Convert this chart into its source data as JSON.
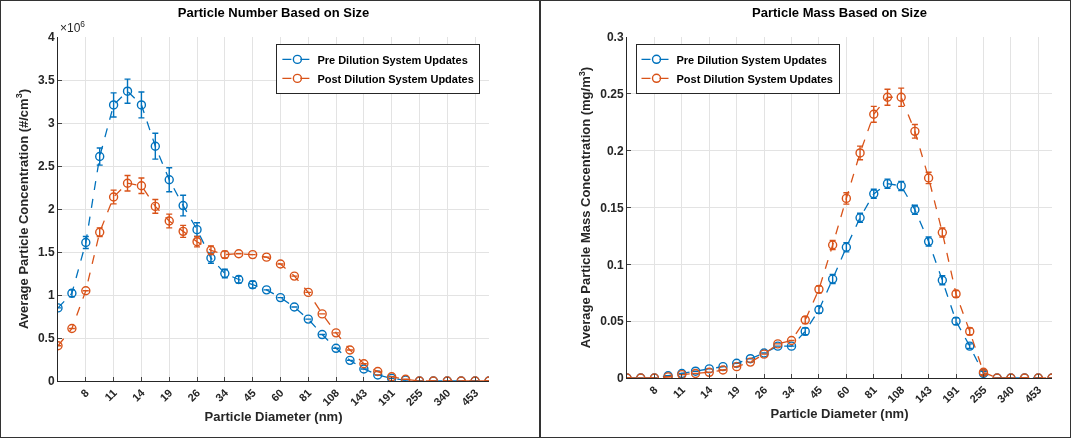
{
  "chart_data": [
    {
      "type": "line",
      "title": "Particle Number Based on Size",
      "xlabel": "Particle Diameter (nm)",
      "ylabel": "Average Particle Concentration (#/cm$^{3}$)",
      "annotations": [
        "×10$^{6}$"
      ],
      "categories": [
        null,
        null,
        "8",
        null,
        "11",
        null,
        "14",
        null,
        "19",
        null,
        "26",
        null,
        "34",
        null,
        "45",
        null,
        "60",
        null,
        "81",
        null,
        "108",
        null,
        "143",
        null,
        "191",
        null,
        "255",
        null,
        "340",
        null,
        "453",
        null
      ],
      "ylim": [
        0,
        4
      ],
      "yticks": [
        0,
        0.5,
        1,
        1.5,
        2,
        2.5,
        3,
        3.5,
        4
      ],
      "grid": true,
      "legend": "top right",
      "marker": "circle",
      "line_style": "dashed",
      "series": [
        {
          "name": "Pre Dilution System Updates",
          "color": "#0072bd",
          "values": [
            0.85,
            1.02,
            1.61,
            2.61,
            3.21,
            3.37,
            3.21,
            2.73,
            2.34,
            2.04,
            1.76,
            1.43,
            1.25,
            1.18,
            1.12,
            1.06,
            0.97,
            0.86,
            0.72,
            0.54,
            0.38,
            0.24,
            0.14,
            0.07,
            0.03,
            0.01,
            0,
            0,
            0,
            0,
            0,
            0
          ],
          "errors": [
            null,
            0.04,
            0.07,
            0.1,
            0.14,
            0.14,
            0.15,
            0.15,
            0.14,
            0.12,
            0.08,
            0.06,
            0.05,
            0.04,
            0.04,
            null,
            null,
            null,
            null,
            null,
            null,
            null,
            null,
            null,
            null,
            null,
            null,
            null,
            null,
            null,
            null,
            null
          ]
        },
        {
          "name": "Post Dilution System Updates",
          "color": "#d95319",
          "values": [
            0.41,
            0.61,
            1.05,
            1.73,
            2.14,
            2.3,
            2.27,
            2.03,
            1.86,
            1.74,
            1.62,
            1.52,
            1.47,
            1.48,
            1.47,
            1.44,
            1.36,
            1.22,
            1.03,
            0.78,
            0.56,
            0.36,
            0.2,
            0.11,
            0.05,
            0.02,
            0,
            0,
            0,
            0,
            0,
            0
          ],
          "errors": [
            null,
            null,
            null,
            0.05,
            0.08,
            0.09,
            0.09,
            0.08,
            0.08,
            0.07,
            0.06,
            0.05,
            0.04,
            null,
            null,
            null,
            null,
            null,
            null,
            null,
            null,
            null,
            null,
            null,
            null,
            null,
            null,
            null,
            null,
            null,
            null,
            null
          ]
        }
      ]
    },
    {
      "type": "line",
      "title": "Particle Mass Based on Size",
      "xlabel": "Particle Diameter (nm)",
      "ylabel": "Average Particle Mass Concentration (mg/m$^{3}$)",
      "categories": [
        null,
        null,
        "8",
        null,
        "11",
        null,
        "14",
        null,
        "19",
        null,
        "26",
        null,
        "34",
        null,
        "45",
        null,
        "60",
        null,
        "81",
        null,
        "108",
        null,
        "143",
        null,
        "191",
        null,
        "255",
        null,
        "340",
        null,
        "453",
        null
      ],
      "ylim": [
        0,
        0.3
      ],
      "yticks": [
        0,
        0.05,
        0.1,
        0.15,
        0.2,
        0.25,
        0.3
      ],
      "grid": true,
      "legend": "top left",
      "marker": "circle",
      "line_style": "dashed",
      "series": [
        {
          "name": "Pre Dilution System Updates",
          "color": "#0072bd",
          "values": [
            0,
            0,
            0,
            0.002,
            0.004,
            0.006,
            0.008,
            0.01,
            0.013,
            0.017,
            0.022,
            0.028,
            0.028,
            0.041,
            0.06,
            0.087,
            0.115,
            0.141,
            0.162,
            0.171,
            0.169,
            0.148,
            0.12,
            0.086,
            0.05,
            0.028,
            0.004,
            0,
            0,
            0,
            0,
            0
          ],
          "errors": [
            null,
            null,
            null,
            null,
            null,
            null,
            null,
            null,
            null,
            null,
            null,
            null,
            null,
            0.003,
            0.003,
            0.004,
            0.004,
            0.004,
            0.004,
            0.004,
            0.004,
            0.004,
            0.004,
            0.004,
            0.003,
            0.002,
            0.002,
            null,
            null,
            null,
            null,
            null
          ]
        },
        {
          "name": "Post Dilution System Updates",
          "color": "#d95319",
          "values": [
            0,
            0,
            0,
            0.001,
            0.003,
            0.004,
            0.005,
            0.007,
            0.01,
            0.014,
            0.021,
            0.03,
            0.033,
            0.051,
            0.078,
            0.117,
            0.158,
            0.198,
            0.232,
            0.247,
            0.247,
            0.217,
            0.176,
            0.128,
            0.074,
            0.041,
            0.005,
            0,
            0,
            0,
            0,
            0
          ],
          "errors": [
            null,
            null,
            null,
            null,
            null,
            null,
            null,
            null,
            null,
            null,
            null,
            null,
            null,
            0.003,
            0.003,
            0.004,
            0.005,
            0.006,
            0.007,
            0.007,
            0.008,
            0.006,
            0.005,
            0.004,
            0.003,
            0.003,
            0.002,
            null,
            null,
            null,
            null,
            null
          ]
        }
      ]
    }
  ]
}
